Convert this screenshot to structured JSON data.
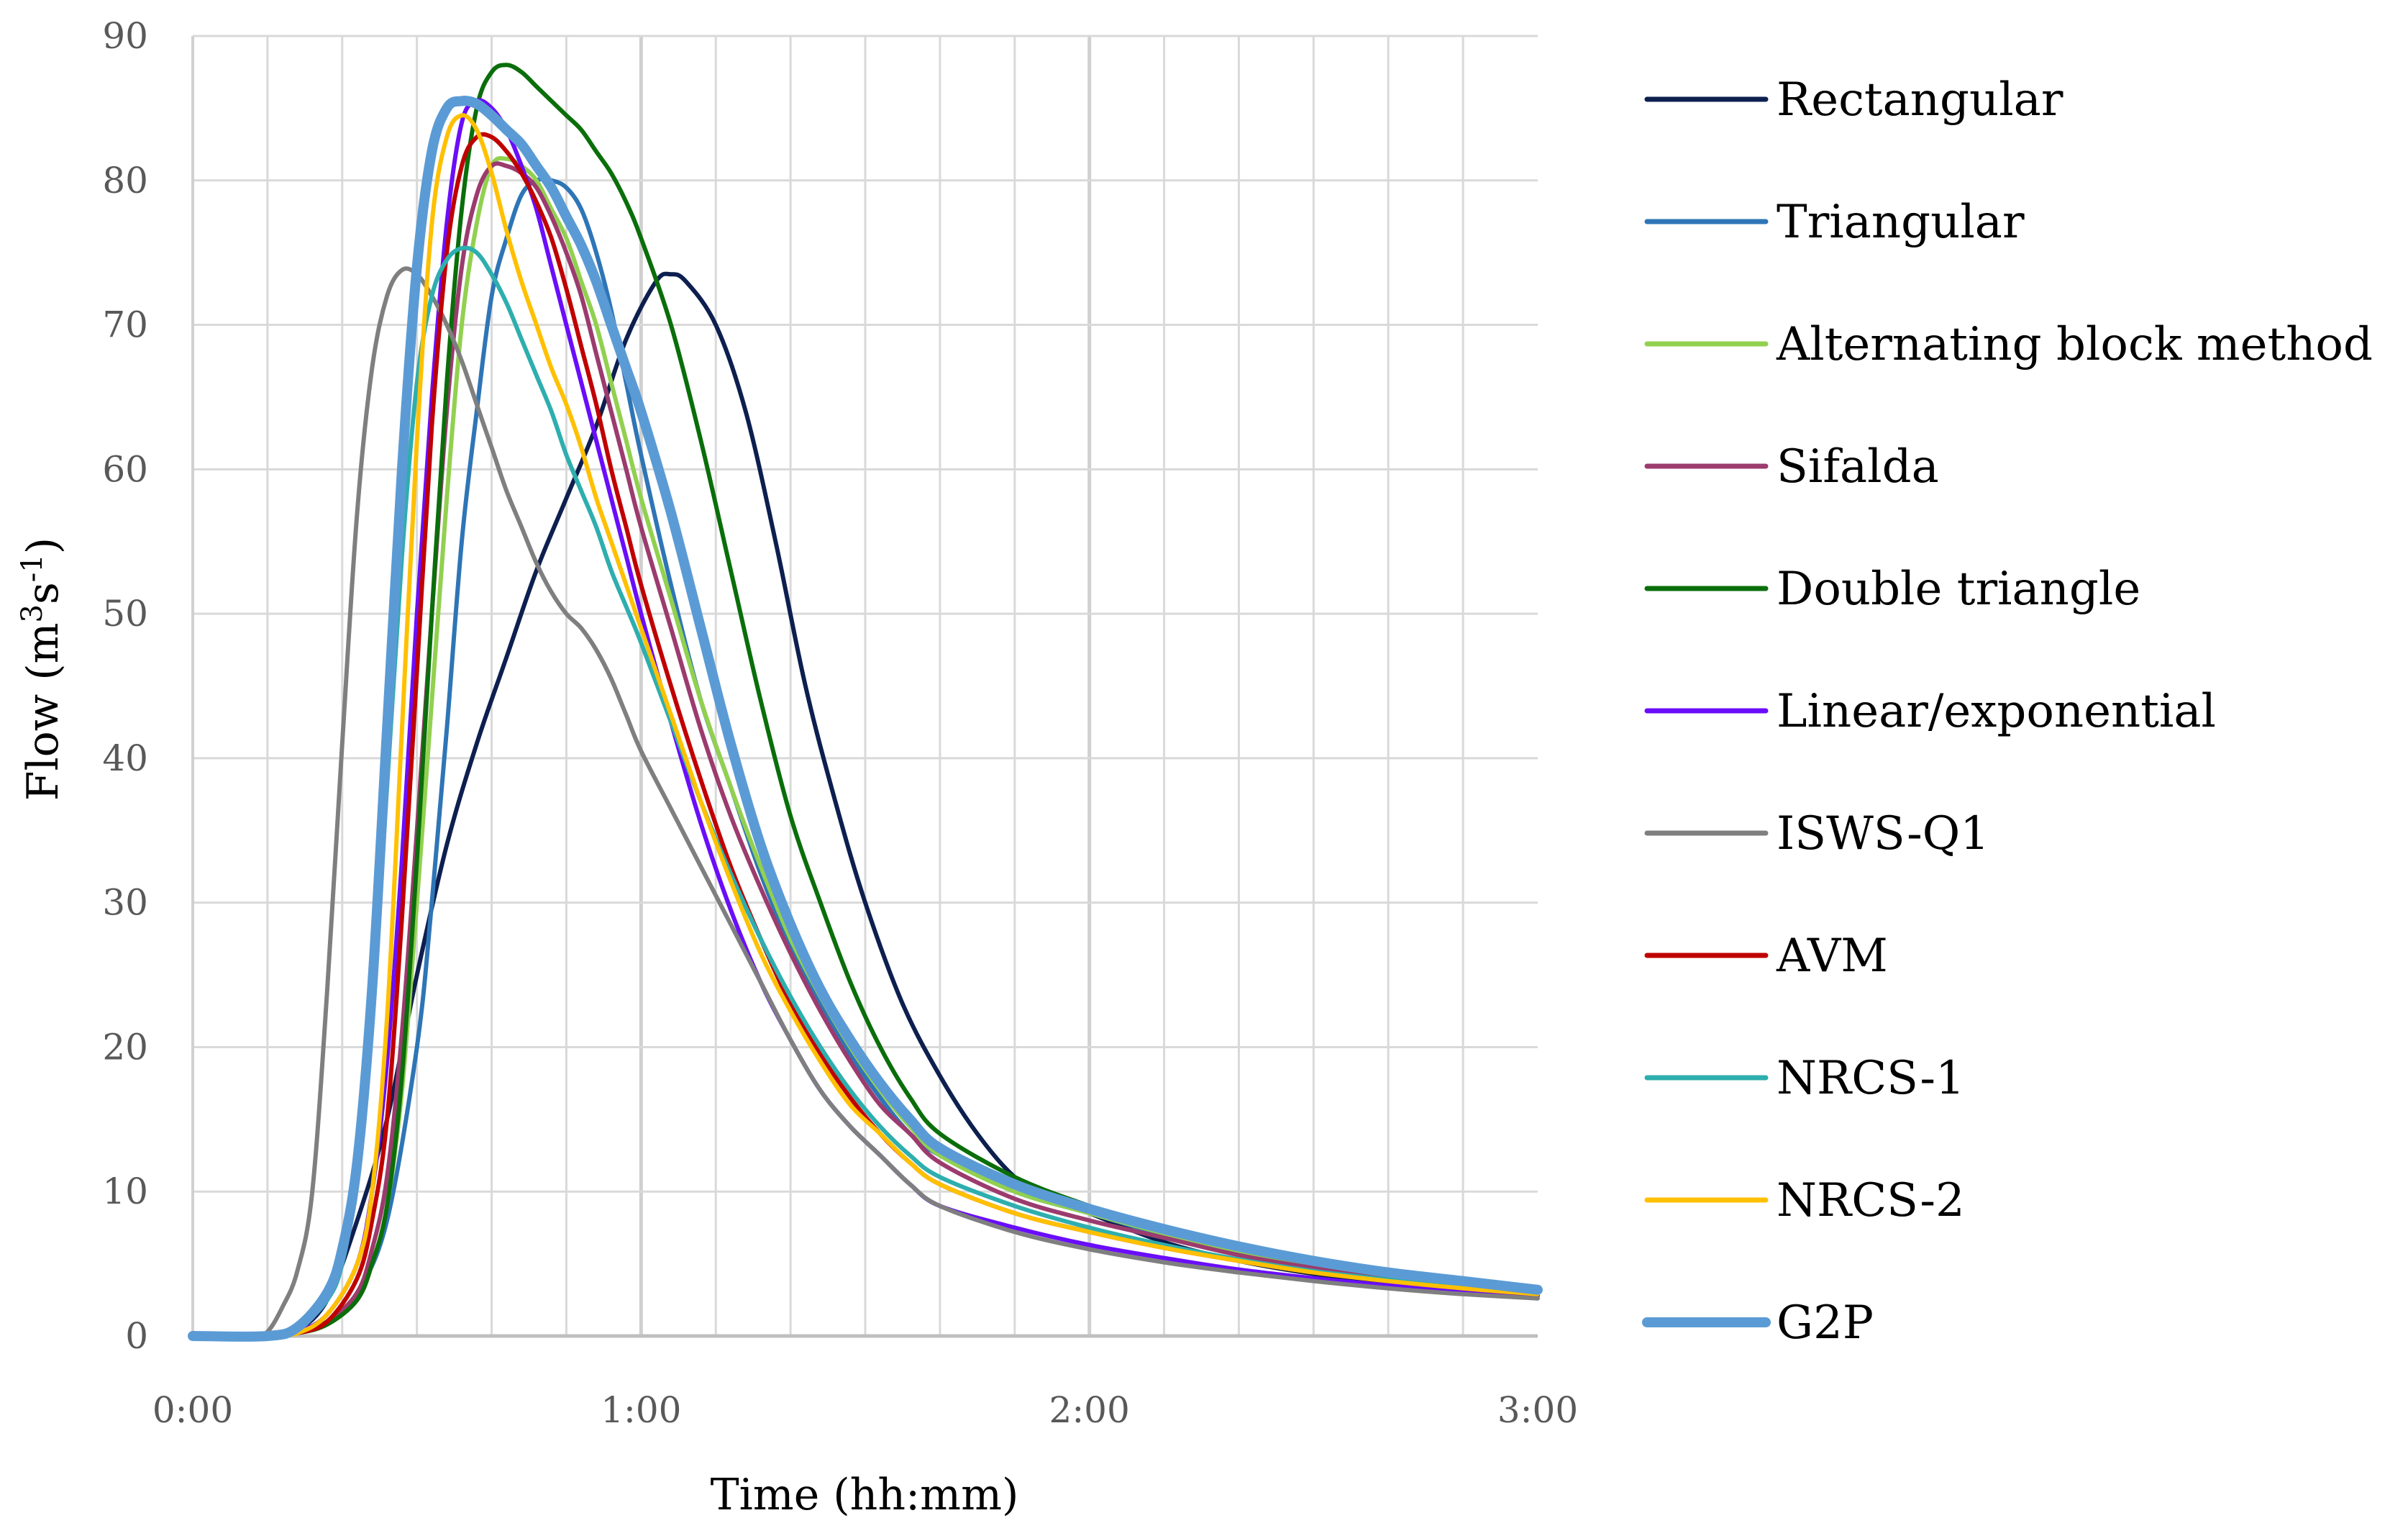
{
  "chart_data": {
    "type": "line",
    "title": "",
    "xlabel": "Time (hh:mm)",
    "ylabel_parts": [
      "Flow (m",
      "3",
      "s",
      "-1",
      ")"
    ],
    "x_unit": "minutes",
    "xlim": [
      0,
      180
    ],
    "ylim": [
      0,
      90
    ],
    "y_ticks": [
      0,
      10,
      20,
      30,
      40,
      50,
      60,
      70,
      80,
      90
    ],
    "x_ticks": [
      {
        "value": 0,
        "label": "0:00"
      },
      {
        "value": 60,
        "label": "1:00"
      },
      {
        "value": 120,
        "label": "2:00"
      },
      {
        "value": 180,
        "label": "3:00"
      }
    ],
    "grid": true,
    "legend_position": "right",
    "series": [
      {
        "name": "Rectangular",
        "color": "#0d1f4f",
        "x": [
          0,
          10,
          14,
          18,
          22,
          26,
          30,
          34,
          38,
          42,
          46,
          50,
          54,
          58,
          62,
          64,
          66,
          70,
          74,
          78,
          82,
          86,
          90,
          95,
          100,
          105,
          110,
          115,
          120,
          130,
          140,
          150,
          160,
          170,
          180
        ],
        "y": [
          0,
          0,
          0.4,
          2.5,
          8,
          15,
          25,
          34,
          41,
          47,
          53,
          58,
          63,
          69,
          73,
          73.5,
          73,
          70,
          64,
          55,
          45,
          37,
          30,
          23,
          18,
          14,
          11,
          9.5,
          8.5,
          6.5,
          5.2,
          4.3,
          3.7,
          3.2,
          2.8
        ]
      },
      {
        "name": "Triangular",
        "color": "#2e75b6",
        "x": [
          0,
          10,
          14,
          18,
          22,
          26,
          30,
          32,
          34,
          36,
          38,
          40,
          42,
          44,
          46,
          48,
          50,
          52,
          54,
          56,
          58,
          60,
          64,
          68,
          72,
          76,
          80,
          84,
          88,
          92,
          96,
          100,
          110,
          120,
          130,
          140,
          150,
          160,
          170,
          180
        ],
        "y": [
          0,
          0,
          0.2,
          1,
          3,
          8,
          20,
          30,
          42,
          55,
          64,
          72,
          76,
          79,
          80,
          80,
          79.5,
          78,
          75,
          71,
          66,
          61,
          52,
          44,
          38,
          32,
          27,
          23,
          19.5,
          16.5,
          14,
          12.5,
          10,
          8.5,
          7,
          5.8,
          4.9,
          4.1,
          3.5,
          3
        ]
      },
      {
        "name": "Alternating block method",
        "color": "#92d050",
        "x": [
          0,
          10,
          14,
          18,
          22,
          24,
          26,
          28,
          30,
          32,
          34,
          36,
          38,
          40,
          42,
          44,
          46,
          48,
          50,
          52,
          54,
          56,
          58,
          60,
          64,
          68,
          72,
          76,
          80,
          84,
          88,
          92,
          96,
          100,
          110,
          120,
          130,
          140,
          150,
          160,
          170,
          180
        ],
        "y": [
          0,
          0,
          0.2,
          0.8,
          2.5,
          5,
          9,
          17,
          30,
          44,
          58,
          70,
          77,
          81,
          81.5,
          81,
          80,
          78,
          76,
          73,
          70,
          66,
          62,
          58,
          51,
          44,
          38,
          32.5,
          27.5,
          23.5,
          20,
          17,
          14.5,
          12.5,
          10,
          8.5,
          7.1,
          5.9,
          4.9,
          4.1,
          3.5,
          3
        ]
      },
      {
        "name": "Sifalda",
        "color": "#9b3b6e",
        "x": [
          0,
          10,
          14,
          18,
          22,
          24,
          26,
          28,
          30,
          32,
          34,
          36,
          38,
          40,
          42,
          44,
          46,
          48,
          50,
          52,
          54,
          56,
          58,
          60,
          64,
          68,
          72,
          76,
          80,
          84,
          88,
          92,
          96,
          100,
          110,
          120,
          130,
          140,
          150,
          160,
          170,
          180
        ],
        "y": [
          0,
          0,
          0.2,
          1,
          3,
          6,
          11,
          21,
          35,
          50,
          64,
          74,
          79,
          81,
          81,
          80.5,
          79.5,
          77.5,
          75,
          72,
          68,
          64,
          60,
          56,
          49,
          42,
          36,
          31,
          26.5,
          22.5,
          19,
          16,
          14,
          12,
          9.5,
          8,
          6.8,
          5.6,
          4.7,
          4,
          3.4,
          2.9
        ]
      },
      {
        "name": "Double triangle",
        "color": "#0a6e0a",
        "x": [
          0,
          10,
          14,
          18,
          22,
          24,
          26,
          28,
          30,
          32,
          34,
          36,
          38,
          40,
          42,
          44,
          46,
          48,
          50,
          52,
          54,
          56,
          58,
          60,
          64,
          68,
          72,
          76,
          80,
          84,
          88,
          92,
          96,
          100,
          110,
          120,
          130,
          140,
          150,
          160,
          170,
          180
        ],
        "y": [
          0,
          0,
          0.2,
          0.8,
          2.5,
          5,
          9,
          18,
          33,
          50,
          66,
          78,
          85,
          87.5,
          88,
          87.5,
          86.5,
          85.5,
          84.5,
          83.5,
          82,
          80.5,
          78.5,
          76,
          70,
          62,
          53,
          44,
          36,
          30,
          24.5,
          20,
          16.5,
          14,
          11,
          9,
          7.3,
          6,
          5,
          4.2,
          3.5,
          3
        ]
      },
      {
        "name": "Linear/exponential",
        "color": "#6a0dfa",
        "x": [
          0,
          10,
          14,
          18,
          22,
          24,
          26,
          28,
          30,
          32,
          34,
          36,
          38,
          40,
          42,
          44,
          46,
          48,
          50,
          52,
          54,
          56,
          58,
          60,
          64,
          68,
          72,
          76,
          80,
          84,
          88,
          92,
          96,
          100,
          110,
          120,
          130,
          140,
          150,
          160,
          170,
          180
        ],
        "y": [
          0,
          0,
          0.3,
          1.5,
          5,
          10,
          19,
          33,
          50,
          65,
          77,
          84,
          85.5,
          85,
          83.5,
          81,
          78,
          74,
          70,
          66,
          62,
          58,
          54,
          50,
          42.5,
          35.5,
          29.5,
          24.5,
          20.5,
          17,
          14.5,
          12.5,
          10.5,
          9,
          7.5,
          6.3,
          5.4,
          4.6,
          4,
          3.5,
          3.1,
          2.8
        ]
      },
      {
        "name": "ISWS-Q1",
        "color": "#7f7f7f",
        "x": [
          0,
          8,
          10,
          12,
          14,
          16,
          18,
          20,
          22,
          24,
          26,
          28,
          30,
          32,
          34,
          36,
          38,
          40,
          42,
          44,
          46,
          48,
          50,
          52,
          54,
          56,
          58,
          60,
          64,
          68,
          72,
          76,
          80,
          84,
          88,
          92,
          96,
          100,
          110,
          120,
          130,
          140,
          150,
          160,
          170,
          180
        ],
        "y": [
          0,
          0,
          0.3,
          2,
          4.5,
          10,
          24,
          41,
          57,
          67,
          72,
          73.8,
          73.5,
          72,
          70,
          67.5,
          64.5,
          61.5,
          58.5,
          56,
          53.5,
          51.5,
          50,
          49,
          47.5,
          45.5,
          43,
          40.5,
          36.5,
          32.5,
          28.5,
          24.5,
          20.5,
          17,
          14.5,
          12.5,
          10.5,
          9,
          7.2,
          6,
          5.1,
          4.4,
          3.8,
          3.3,
          2.9,
          2.6
        ]
      },
      {
        "name": "AVM",
        "color": "#c00000",
        "x": [
          0,
          10,
          14,
          18,
          22,
          24,
          26,
          28,
          30,
          32,
          34,
          36,
          38,
          40,
          42,
          44,
          46,
          48,
          50,
          52,
          54,
          56,
          58,
          60,
          64,
          68,
          72,
          76,
          80,
          84,
          88,
          92,
          96,
          100,
          110,
          120,
          130,
          140,
          150,
          160,
          170,
          180
        ],
        "y": [
          0,
          0,
          0.2,
          1,
          4,
          8,
          15,
          29,
          46,
          63,
          75,
          81,
          83,
          83,
          82,
          80.5,
          78.5,
          76,
          72.5,
          68.5,
          64.5,
          60,
          56,
          52,
          45,
          38.5,
          32.5,
          27.5,
          23,
          19.5,
          16.5,
          14,
          12,
          10.5,
          8.5,
          7.2,
          6.1,
          5.2,
          4.4,
          3.8,
          3.3,
          2.9
        ]
      },
      {
        "name": "NRCS-1",
        "color": "#2eaeae",
        "x": [
          0,
          10,
          14,
          18,
          20,
          22,
          24,
          26,
          28,
          30,
          32,
          34,
          36,
          38,
          40,
          42,
          44,
          46,
          48,
          50,
          52,
          54,
          56,
          58,
          60,
          64,
          68,
          72,
          76,
          80,
          84,
          88,
          92,
          96,
          100,
          110,
          120,
          130,
          140,
          150,
          160,
          170,
          180
        ],
        "y": [
          0,
          0,
          0.5,
          2.5,
          5,
          11,
          22,
          38,
          54,
          66,
          72,
          74.5,
          75.3,
          75,
          73.5,
          71.5,
          69,
          66.5,
          64,
          61,
          58.5,
          56,
          53,
          50.5,
          48,
          42.5,
          37,
          32,
          27.5,
          23.5,
          20,
          17,
          14.5,
          12.5,
          11,
          9,
          7.5,
          6.3,
          5.3,
          4.5,
          3.9,
          3.4,
          3
        ]
      },
      {
        "name": "NRCS-2",
        "color": "#ffc000",
        "x": [
          0,
          10,
          14,
          18,
          22,
          24,
          26,
          28,
          30,
          32,
          34,
          36,
          38,
          40,
          42,
          44,
          46,
          48,
          50,
          52,
          54,
          56,
          58,
          60,
          64,
          68,
          72,
          76,
          80,
          84,
          88,
          92,
          96,
          100,
          110,
          120,
          130,
          140,
          150,
          160,
          170,
          180
        ],
        "y": [
          0,
          0,
          0.2,
          1.5,
          5,
          10,
          22,
          42,
          62,
          77,
          83,
          84.5,
          83.5,
          80.5,
          76.5,
          73,
          70,
          67,
          64.5,
          61.5,
          58,
          55,
          52,
          49,
          43,
          37,
          31.5,
          26.5,
          22.5,
          19,
          16,
          14,
          12,
          10.5,
          8.5,
          7.2,
          6.1,
          5.2,
          4.4,
          3.8,
          3.3,
          2.9
        ]
      },
      {
        "name": "G2P",
        "color": "#5b9bd5",
        "x": [
          0,
          10,
          14,
          18,
          20,
          22,
          24,
          26,
          28,
          30,
          32,
          34,
          36,
          38,
          40,
          42,
          44,
          46,
          48,
          50,
          52,
          54,
          56,
          58,
          60,
          64,
          68,
          72,
          76,
          80,
          84,
          88,
          92,
          96,
          100,
          110,
          120,
          130,
          140,
          150,
          160,
          170,
          180
        ],
        "y": [
          0,
          0,
          0.6,
          3,
          6,
          12,
          24,
          42,
          60,
          74,
          82,
          85,
          85.5,
          85.3,
          84.5,
          83.5,
          82.5,
          81,
          79.5,
          77.5,
          75.5,
          73,
          70,
          67,
          64,
          57,
          49,
          41,
          34,
          28.5,
          24,
          20.5,
          17.5,
          15,
          13,
          10.5,
          8.8,
          7.4,
          6.2,
          5.2,
          4.4,
          3.8,
          3.2
        ]
      }
    ]
  }
}
